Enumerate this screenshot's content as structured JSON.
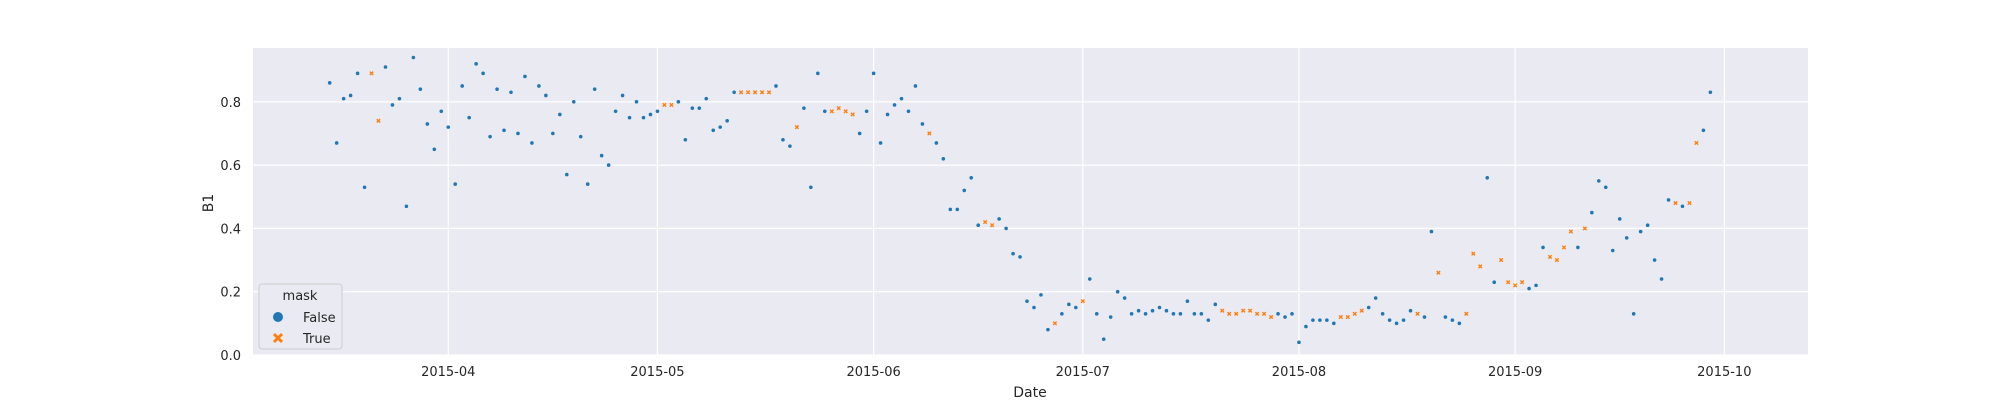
{
  "chart_data": {
    "type": "scatter",
    "xlabel": "Date",
    "ylabel": "B1",
    "xlim": [
      "2015-03-04",
      "2015-10-13"
    ],
    "ylim": [
      0.0,
      0.97
    ],
    "x_ticks": [
      "2015-04",
      "2015-05",
      "2015-06",
      "2015-07",
      "2015-08",
      "2015-09",
      "2015-10"
    ],
    "y_ticks": [
      "0.0",
      "0.2",
      "0.4",
      "0.6",
      "0.8"
    ],
    "grid": true,
    "legend": {
      "title": "mask",
      "placement": "lower-left"
    },
    "series": [
      {
        "name": "False",
        "marker": "circle",
        "color": "#1f77b4",
        "points": [
          [
            "2015-03-15",
            0.86
          ],
          [
            "2015-03-16",
            0.67
          ],
          [
            "2015-03-17",
            0.81
          ],
          [
            "2015-03-18",
            0.82
          ],
          [
            "2015-03-19",
            0.89
          ],
          [
            "2015-03-20",
            0.53
          ],
          [
            "2015-03-23",
            0.91
          ],
          [
            "2015-03-24",
            0.79
          ],
          [
            "2015-03-25",
            0.81
          ],
          [
            "2015-03-26",
            0.47
          ],
          [
            "2015-03-27",
            0.94
          ],
          [
            "2015-03-28",
            0.84
          ],
          [
            "2015-03-29",
            0.73
          ],
          [
            "2015-03-30",
            0.65
          ],
          [
            "2015-03-31",
            0.77
          ],
          [
            "2015-04-01",
            0.72
          ],
          [
            "2015-04-02",
            0.54
          ],
          [
            "2015-04-03",
            0.85
          ],
          [
            "2015-04-04",
            0.75
          ],
          [
            "2015-04-05",
            0.92
          ],
          [
            "2015-04-06",
            0.89
          ],
          [
            "2015-04-07",
            0.69
          ],
          [
            "2015-04-08",
            0.84
          ],
          [
            "2015-04-09",
            0.71
          ],
          [
            "2015-04-10",
            0.83
          ],
          [
            "2015-04-11",
            0.7
          ],
          [
            "2015-04-12",
            0.88
          ],
          [
            "2015-04-13",
            0.67
          ],
          [
            "2015-04-14",
            0.85
          ],
          [
            "2015-04-15",
            0.82
          ],
          [
            "2015-04-16",
            0.7
          ],
          [
            "2015-04-17",
            0.76
          ],
          [
            "2015-04-18",
            0.57
          ],
          [
            "2015-04-19",
            0.8
          ],
          [
            "2015-04-20",
            0.69
          ],
          [
            "2015-04-21",
            0.54
          ],
          [
            "2015-04-22",
            0.84
          ],
          [
            "2015-04-23",
            0.63
          ],
          [
            "2015-04-24",
            0.6
          ],
          [
            "2015-04-25",
            0.77
          ],
          [
            "2015-04-26",
            0.82
          ],
          [
            "2015-04-27",
            0.75
          ],
          [
            "2015-04-28",
            0.8
          ],
          [
            "2015-04-29",
            0.75
          ],
          [
            "2015-04-30",
            0.76
          ],
          [
            "2015-05-01",
            0.77
          ],
          [
            "2015-05-04",
            0.8
          ],
          [
            "2015-05-05",
            0.68
          ],
          [
            "2015-05-06",
            0.78
          ],
          [
            "2015-05-07",
            0.78
          ],
          [
            "2015-05-08",
            0.81
          ],
          [
            "2015-05-09",
            0.71
          ],
          [
            "2015-05-10",
            0.72
          ],
          [
            "2015-05-11",
            0.74
          ],
          [
            "2015-05-12",
            0.83
          ],
          [
            "2015-05-18",
            0.85
          ],
          [
            "2015-05-19",
            0.68
          ],
          [
            "2015-05-20",
            0.66
          ],
          [
            "2015-05-22",
            0.78
          ],
          [
            "2015-05-23",
            0.53
          ],
          [
            "2015-05-24",
            0.89
          ],
          [
            "2015-05-25",
            0.77
          ],
          [
            "2015-05-30",
            0.7
          ],
          [
            "2015-05-31",
            0.77
          ],
          [
            "2015-06-01",
            0.89
          ],
          [
            "2015-06-02",
            0.67
          ],
          [
            "2015-06-03",
            0.76
          ],
          [
            "2015-06-04",
            0.79
          ],
          [
            "2015-06-05",
            0.81
          ],
          [
            "2015-06-06",
            0.77
          ],
          [
            "2015-06-07",
            0.85
          ],
          [
            "2015-06-08",
            0.73
          ],
          [
            "2015-06-10",
            0.67
          ],
          [
            "2015-06-11",
            0.62
          ],
          [
            "2015-06-12",
            0.46
          ],
          [
            "2015-06-13",
            0.46
          ],
          [
            "2015-06-14",
            0.52
          ],
          [
            "2015-06-15",
            0.56
          ],
          [
            "2015-06-16",
            0.41
          ],
          [
            "2015-06-19",
            0.43
          ],
          [
            "2015-06-20",
            0.4
          ],
          [
            "2015-06-21",
            0.32
          ],
          [
            "2015-06-22",
            0.31
          ],
          [
            "2015-06-23",
            0.17
          ],
          [
            "2015-06-24",
            0.15
          ],
          [
            "2015-06-25",
            0.19
          ],
          [
            "2015-06-26",
            0.08
          ],
          [
            "2015-06-28",
            0.13
          ],
          [
            "2015-06-29",
            0.16
          ],
          [
            "2015-06-30",
            0.15
          ],
          [
            "2015-07-02",
            0.24
          ],
          [
            "2015-07-03",
            0.13
          ],
          [
            "2015-07-04",
            0.05
          ],
          [
            "2015-07-05",
            0.12
          ],
          [
            "2015-07-06",
            0.2
          ],
          [
            "2015-07-07",
            0.18
          ],
          [
            "2015-07-08",
            0.13
          ],
          [
            "2015-07-09",
            0.14
          ],
          [
            "2015-07-10",
            0.13
          ],
          [
            "2015-07-11",
            0.14
          ],
          [
            "2015-07-12",
            0.15
          ],
          [
            "2015-07-13",
            0.14
          ],
          [
            "2015-07-14",
            0.13
          ],
          [
            "2015-07-15",
            0.13
          ],
          [
            "2015-07-16",
            0.17
          ],
          [
            "2015-07-17",
            0.13
          ],
          [
            "2015-07-18",
            0.13
          ],
          [
            "2015-07-19",
            0.11
          ],
          [
            "2015-07-20",
            0.16
          ],
          [
            "2015-07-29",
            0.13
          ],
          [
            "2015-07-30",
            0.12
          ],
          [
            "2015-07-31",
            0.13
          ],
          [
            "2015-08-01",
            0.04
          ],
          [
            "2015-08-02",
            0.09
          ],
          [
            "2015-08-03",
            0.11
          ],
          [
            "2015-08-04",
            0.11
          ],
          [
            "2015-08-05",
            0.11
          ],
          [
            "2015-08-06",
            0.1
          ],
          [
            "2015-08-11",
            0.15
          ],
          [
            "2015-08-12",
            0.18
          ],
          [
            "2015-08-13",
            0.13
          ],
          [
            "2015-08-14",
            0.11
          ],
          [
            "2015-08-15",
            0.1
          ],
          [
            "2015-08-16",
            0.11
          ],
          [
            "2015-08-17",
            0.14
          ],
          [
            "2015-08-19",
            0.12
          ],
          [
            "2015-08-20",
            0.39
          ],
          [
            "2015-08-22",
            0.12
          ],
          [
            "2015-08-23",
            0.11
          ],
          [
            "2015-08-24",
            0.1
          ],
          [
            "2015-08-28",
            0.56
          ],
          [
            "2015-08-29",
            0.23
          ],
          [
            "2015-09-03",
            0.21
          ],
          [
            "2015-09-04",
            0.22
          ],
          [
            "2015-09-05",
            0.34
          ],
          [
            "2015-09-10",
            0.34
          ],
          [
            "2015-09-12",
            0.45
          ],
          [
            "2015-09-13",
            0.55
          ],
          [
            "2015-09-14",
            0.53
          ],
          [
            "2015-09-15",
            0.33
          ],
          [
            "2015-09-16",
            0.43
          ],
          [
            "2015-09-17",
            0.37
          ],
          [
            "2015-09-18",
            0.13
          ],
          [
            "2015-09-19",
            0.39
          ],
          [
            "2015-09-20",
            0.41
          ],
          [
            "2015-09-21",
            0.3
          ],
          [
            "2015-09-22",
            0.24
          ],
          [
            "2015-09-23",
            0.49
          ],
          [
            "2015-09-25",
            0.47
          ],
          [
            "2015-09-28",
            0.71
          ],
          [
            "2015-09-29",
            0.83
          ]
        ]
      },
      {
        "name": "True",
        "marker": "x",
        "color": "#ff7f0e",
        "points": [
          [
            "2015-03-21",
            0.89
          ],
          [
            "2015-03-22",
            0.74
          ],
          [
            "2015-05-02",
            0.79
          ],
          [
            "2015-05-03",
            0.79
          ],
          [
            "2015-05-13",
            0.83
          ],
          [
            "2015-05-14",
            0.83
          ],
          [
            "2015-05-15",
            0.83
          ],
          [
            "2015-05-16",
            0.83
          ],
          [
            "2015-05-17",
            0.83
          ],
          [
            "2015-05-21",
            0.72
          ],
          [
            "2015-05-26",
            0.77
          ],
          [
            "2015-05-27",
            0.78
          ],
          [
            "2015-05-28",
            0.77
          ],
          [
            "2015-05-29",
            0.76
          ],
          [
            "2015-06-09",
            0.7
          ],
          [
            "2015-06-17",
            0.42
          ],
          [
            "2015-06-18",
            0.41
          ],
          [
            "2015-06-27",
            0.1
          ],
          [
            "2015-07-01",
            0.17
          ],
          [
            "2015-07-21",
            0.14
          ],
          [
            "2015-07-22",
            0.13
          ],
          [
            "2015-07-23",
            0.13
          ],
          [
            "2015-07-24",
            0.14
          ],
          [
            "2015-07-25",
            0.14
          ],
          [
            "2015-07-26",
            0.13
          ],
          [
            "2015-07-27",
            0.13
          ],
          [
            "2015-07-28",
            0.12
          ],
          [
            "2015-08-07",
            0.12
          ],
          [
            "2015-08-08",
            0.12
          ],
          [
            "2015-08-09",
            0.13
          ],
          [
            "2015-08-10",
            0.14
          ],
          [
            "2015-08-18",
            0.13
          ],
          [
            "2015-08-21",
            0.26
          ],
          [
            "2015-08-25",
            0.13
          ],
          [
            "2015-08-26",
            0.32
          ],
          [
            "2015-08-27",
            0.28
          ],
          [
            "2015-08-30",
            0.3
          ],
          [
            "2015-08-31",
            0.23
          ],
          [
            "2015-09-01",
            0.22
          ],
          [
            "2015-09-02",
            0.23
          ],
          [
            "2015-09-06",
            0.31
          ],
          [
            "2015-09-07",
            0.3
          ],
          [
            "2015-09-08",
            0.34
          ],
          [
            "2015-09-09",
            0.39
          ],
          [
            "2015-09-11",
            0.4
          ],
          [
            "2015-09-24",
            0.48
          ],
          [
            "2015-09-26",
            0.48
          ],
          [
            "2015-09-27",
            0.67
          ]
        ]
      }
    ]
  }
}
